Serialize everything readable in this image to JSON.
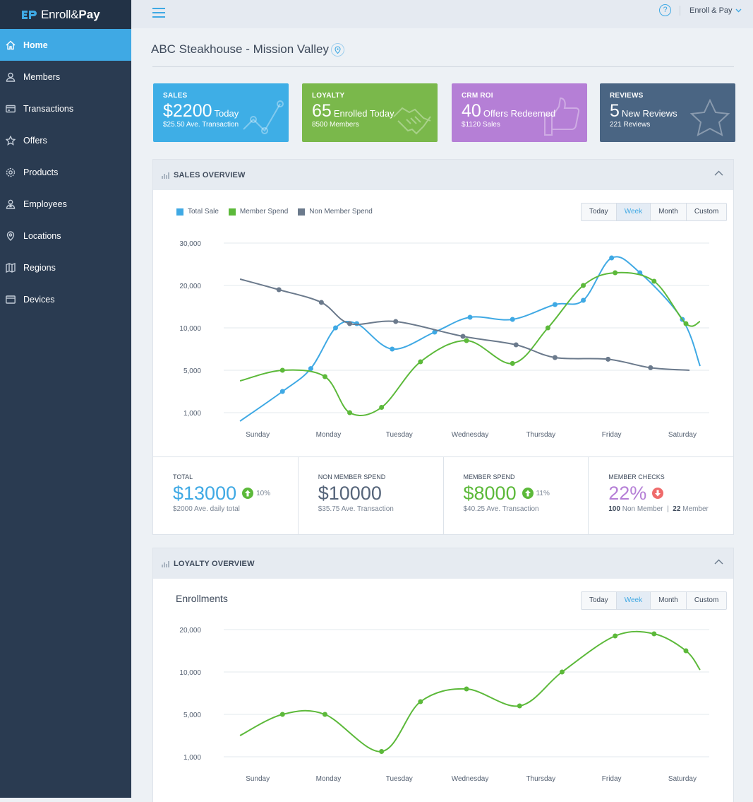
{
  "brand": {
    "name_light": "Enroll&",
    "name_bold": "Pay"
  },
  "sidebar": {
    "items": [
      {
        "label": "Home",
        "icon": "home-icon"
      },
      {
        "label": "Members",
        "icon": "user-icon"
      },
      {
        "label": "Transactions",
        "icon": "card-icon"
      },
      {
        "label": "Offers",
        "icon": "star-icon"
      },
      {
        "label": "Products",
        "icon": "gear-icon"
      },
      {
        "label": "Employees",
        "icon": "employee-icon"
      },
      {
        "label": "Locations",
        "icon": "location-icon"
      },
      {
        "label": "Regions",
        "icon": "map-icon"
      },
      {
        "label": "Devices",
        "icon": "device-icon"
      }
    ]
  },
  "header": {
    "help": "?",
    "user_menu": "Enroll & Pay"
  },
  "page": {
    "title": "ABC Steakhouse - Mission Valley"
  },
  "kpis": [
    {
      "label": "SALES",
      "value": "$2200",
      "unit": "Today",
      "sub": "$25.50 Ave. Transaction",
      "color": "#3eaee6"
    },
    {
      "label": "LOYALTY",
      "value": "65",
      "unit": "Enrolled Today",
      "sub": "8500 Members",
      "color": "#7ab84b"
    },
    {
      "label": "CRM ROI",
      "value": "40",
      "unit": "Offers Redeemed",
      "sub": "$1120 Sales",
      "color": "#b57fd6"
    },
    {
      "label": "REVIEWS",
      "value": "5",
      "unit": "New Reviews",
      "sub": "221 Reviews",
      "color": "#4a6583"
    }
  ],
  "sales_overview": {
    "title": "SALES OVERVIEW",
    "legend": [
      "Total Sale",
      "Member Spend",
      "Non Member Spend"
    ],
    "ranges": [
      "Today",
      "Week",
      "Month",
      "Custom"
    ],
    "selected_range": "Week",
    "stats": [
      {
        "label": "TOTAL",
        "value": "$13000",
        "pct": "10%",
        "sub": "$2000 Ave. daily total"
      },
      {
        "label": "NON MEMBER SPEND",
        "value": "$10000",
        "sub": "$35.75 Ave. Transaction"
      },
      {
        "label": "MEMBER SPEND",
        "value": "$8000",
        "pct": "11%",
        "sub": "$40.25 Ave. Transaction"
      },
      {
        "label": "MEMBER CHECKS",
        "value": "22%",
        "non_member_count": "100",
        "non_member_label": "Non Member",
        "sep": "|",
        "member_count": "22",
        "member_label": "Member"
      }
    ]
  },
  "loyalty_overview": {
    "title": "LOYALTY OVERVIEW",
    "subtitle": "Enrollments",
    "ranges": [
      "Today",
      "Week",
      "Month",
      "Custom"
    ],
    "selected_range": "Week"
  },
  "colors": {
    "total": "#3fa9e4",
    "member": "#5cb93a",
    "nonmember": "#6b7a8c",
    "down": "#ef6b6b"
  },
  "chart_data": [
    {
      "type": "line",
      "title": "SALES OVERVIEW",
      "categories": [
        "Sunday",
        "Monday",
        "Tuesday",
        "Wednesday",
        "Thursday",
        "Friday",
        "Saturday"
      ],
      "yticks": [
        "30,000",
        "20,000",
        "10,000",
        "5,000",
        "1,000"
      ],
      "y_scale": "category-ticks (non-linear)",
      "x": [
        -0.25,
        0.35,
        0.75,
        1.1,
        1.5,
        1.9,
        2.5,
        3.0,
        3.6,
        4.2,
        4.6,
        5.0,
        5.4,
        6.0,
        6.35
      ],
      "series": [
        {
          "name": "Total Sale",
          "x": [
            -0.25,
            0.35,
            0.75,
            1.1,
            1.4,
            1.9,
            2.5,
            3.0,
            3.6,
            4.2,
            4.6,
            5.0,
            5.4,
            6.0,
            6.25
          ],
          "values": [
            600,
            3000,
            5200,
            10000,
            11000,
            7500,
            9500,
            12500,
            12000,
            15500,
            16500,
            26500,
            23000,
            12000,
            5500
          ]
        },
        {
          "name": "Member Spend",
          "x": [
            -0.25,
            0.35,
            0.95,
            1.3,
            1.75,
            2.3,
            2.95,
            3.6,
            4.1,
            4.6,
            5.05,
            5.6,
            6.05,
            6.25
          ],
          "values": [
            4000,
            5000,
            4400,
            1000,
            1500,
            6000,
            8500,
            5800,
            10000,
            20000,
            23000,
            21000,
            11000,
            11500
          ]
        },
        {
          "name": "Non Member Spend",
          "x": [
            -0.25,
            0.3,
            0.9,
            1.3,
            1.95,
            2.9,
            3.65,
            4.2,
            4.95,
            5.55,
            6.1
          ],
          "values": [
            21500,
            19000,
            16000,
            11000,
            11500,
            9000,
            8000,
            6500,
            6300,
            5300,
            5000
          ]
        }
      ]
    },
    {
      "type": "line",
      "title": "Enrollments",
      "categories": [
        "Sunday",
        "Monday",
        "Tuesday",
        "Wednesday",
        "Thursday",
        "Friday",
        "Saturday"
      ],
      "yticks": [
        "20,000",
        "10,000",
        "5,000",
        "1,000"
      ],
      "y_scale": "category-ticks (non-linear)",
      "series": [
        {
          "name": "Enrollments",
          "x": [
            -0.25,
            0.35,
            0.95,
            1.75,
            2.3,
            2.95,
            3.7,
            4.3,
            5.05,
            5.6,
            6.05,
            6.25
          ],
          "values": [
            3000,
            5000,
            5000,
            1500,
            6500,
            8000,
            6000,
            10000,
            18500,
            19000,
            15000,
            10500
          ]
        }
      ]
    }
  ]
}
